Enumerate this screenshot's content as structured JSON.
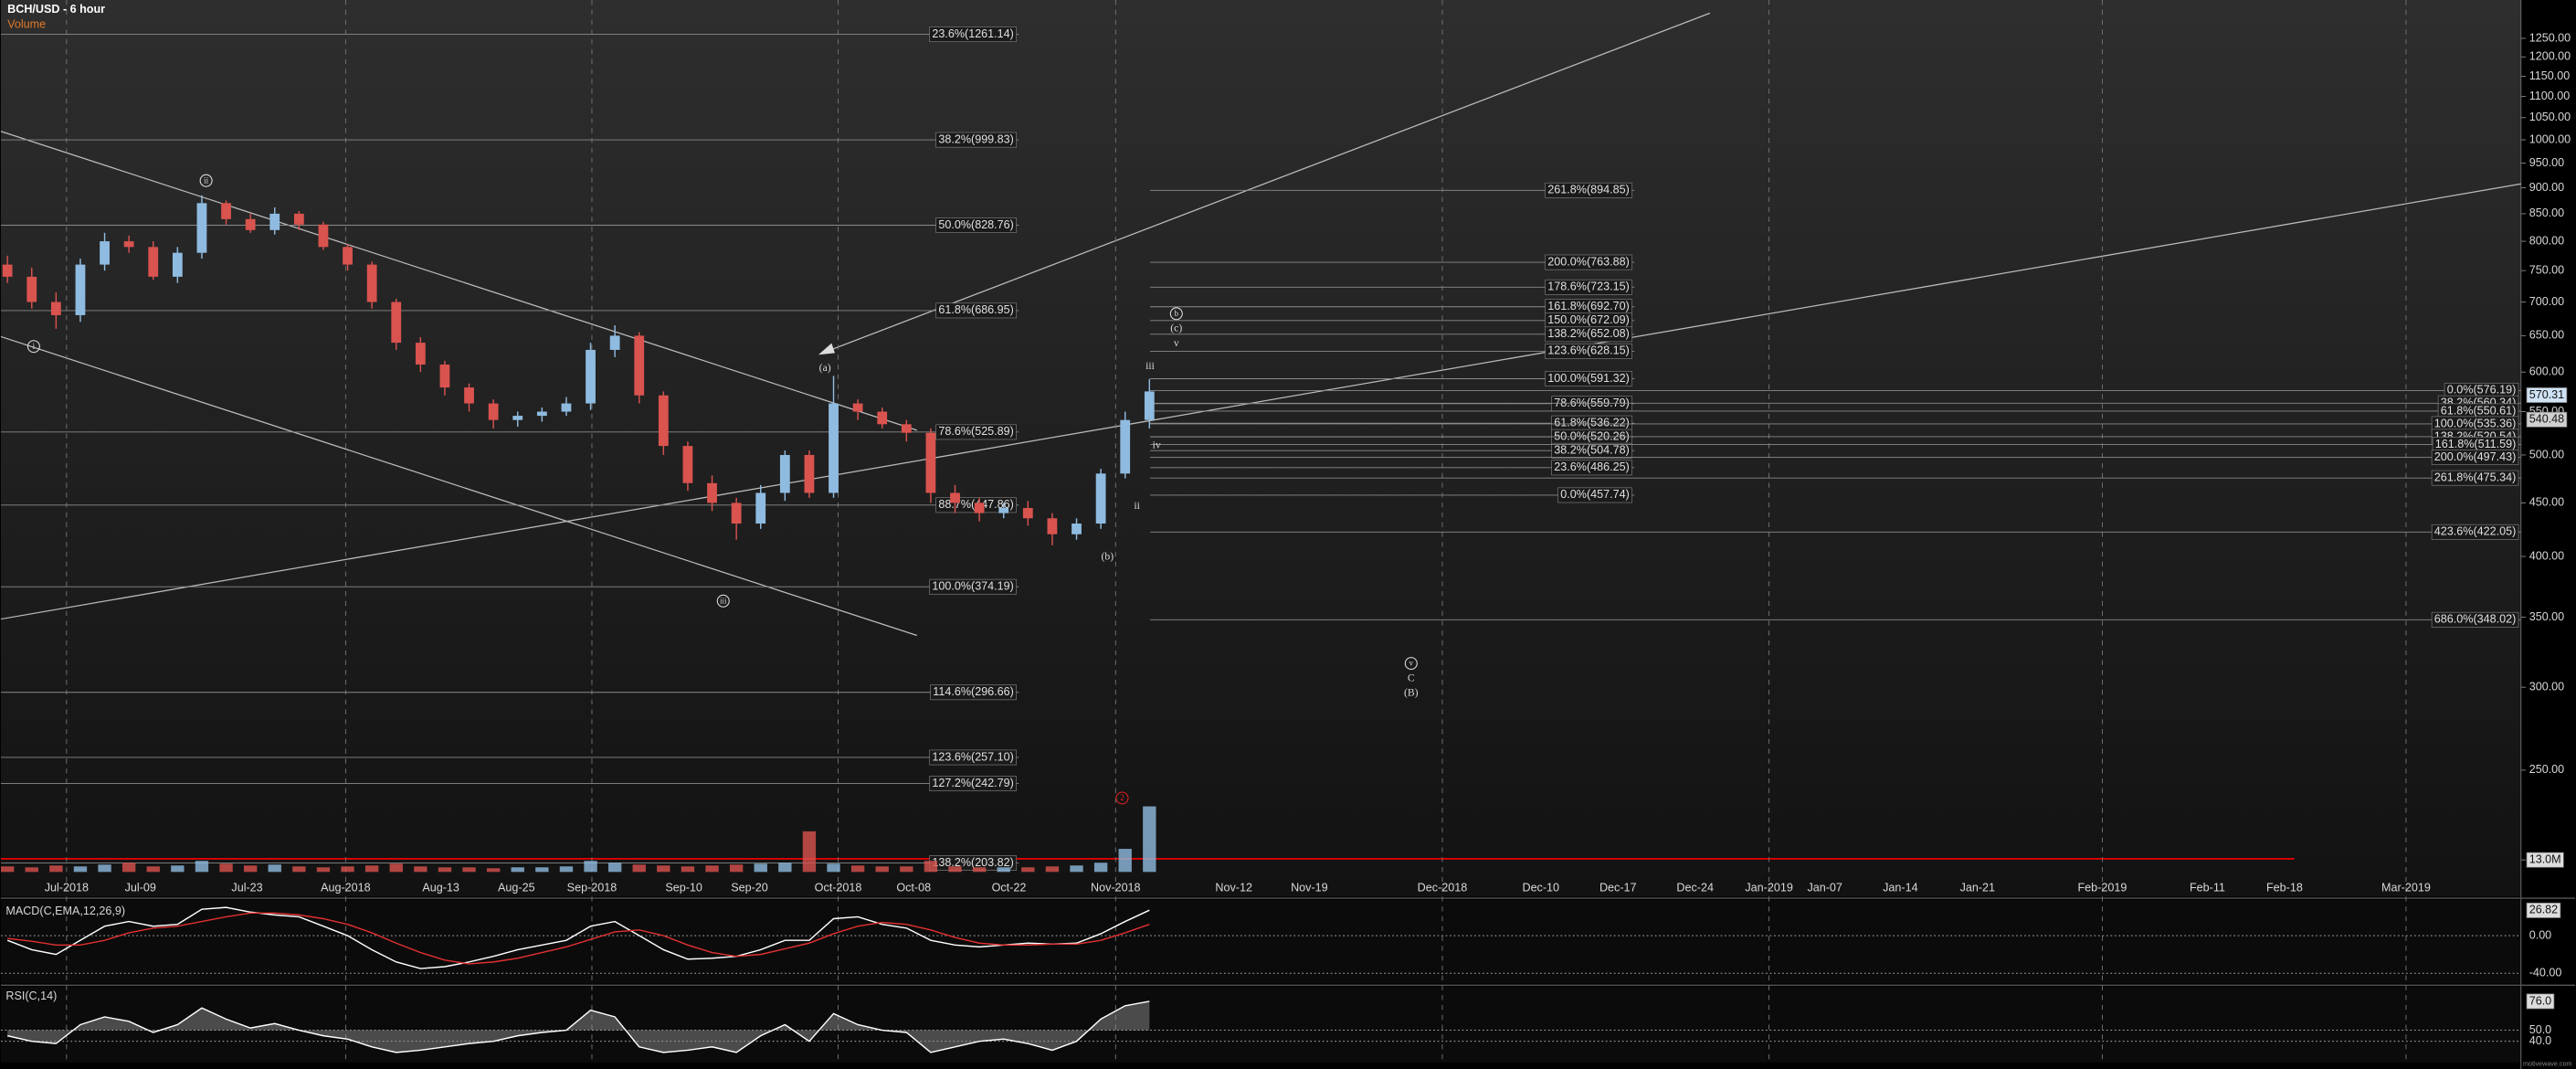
{
  "chart_data": [
    {
      "type": "candlestick",
      "title": "BCH/USD - 6 hour",
      "volume_title": "Volume",
      "open": [
        760,
        740,
        700,
        680,
        760,
        800,
        790,
        740,
        780,
        870,
        840,
        820,
        850,
        830,
        790,
        760,
        700,
        640,
        610,
        580,
        560,
        540,
        545,
        550,
        560,
        630,
        650,
        570,
        510,
        470,
        450,
        430,
        460,
        500,
        460,
        560,
        550,
        535,
        525,
        460,
        450,
        440,
        445,
        435,
        420,
        430,
        480,
        540
      ],
      "high": [
        775,
        755,
        715,
        770,
        815,
        810,
        800,
        790,
        885,
        875,
        850,
        862,
        855,
        835,
        795,
        765,
        705,
        648,
        615,
        585,
        565,
        550,
        555,
        568,
        640,
        665,
        655,
        575,
        515,
        478,
        455,
        468,
        505,
        505,
        595,
        565,
        555,
        540,
        530,
        468,
        455,
        450,
        452,
        440,
        435,
        485,
        550,
        591
      ],
      "low": [
        730,
        690,
        660,
        670,
        750,
        780,
        735,
        730,
        770,
        830,
        815,
        812,
        820,
        785,
        750,
        690,
        630,
        600,
        570,
        550,
        530,
        532,
        538,
        545,
        552,
        620,
        560,
        500,
        462,
        442,
        415,
        425,
        452,
        455,
        455,
        540,
        530,
        515,
        450,
        440,
        432,
        435,
        428,
        410,
        415,
        425,
        475,
        530
      ],
      "close": [
        740,
        700,
        680,
        760,
        800,
        790,
        740,
        780,
        870,
        840,
        820,
        850,
        830,
        790,
        760,
        700,
        640,
        610,
        580,
        560,
        540,
        545,
        550,
        560,
        630,
        650,
        570,
        510,
        470,
        450,
        430,
        460,
        500,
        460,
        560,
        550,
        535,
        525,
        460,
        450,
        440,
        445,
        435,
        420,
        430,
        480,
        540,
        575
      ],
      "volume": [
        6,
        5,
        7,
        6,
        8,
        10,
        6,
        7,
        12,
        9,
        7,
        8,
        6,
        5,
        6,
        7,
        9,
        6,
        5,
        5,
        4,
        5,
        5,
        6,
        12,
        10,
        8,
        7,
        6,
        7,
        8,
        9,
        10,
        44,
        9,
        7,
        6,
        6,
        12,
        6,
        5,
        5,
        5,
        6,
        7,
        10,
        25,
        71
      ],
      "volume_lim": [
        0,
        80
      ],
      "volume_tick": {
        "value": 13,
        "label": "13.0M"
      },
      "up_color": "#8fbbe0",
      "down_color": "#d9534f",
      "log_scale": true,
      "ylim": [
        190,
        1360
      ],
      "yticks": [
        {
          "value": 250,
          "label": "250.00"
        },
        {
          "value": 300,
          "label": "300.00"
        },
        {
          "value": 350,
          "label": "350.00"
        },
        {
          "value": 400,
          "label": "400.00"
        },
        {
          "value": 450,
          "label": "450.00"
        },
        {
          "value": 500,
          "label": "500.00"
        },
        {
          "value": 550,
          "label": "550.00"
        },
        {
          "value": 600,
          "label": "600.00"
        },
        {
          "value": 650,
          "label": "650.00"
        },
        {
          "value": 700,
          "label": "700.00"
        },
        {
          "value": 750,
          "label": "750.00"
        },
        {
          "value": 800,
          "label": "800.00"
        },
        {
          "value": 850,
          "label": "850.00"
        },
        {
          "value": 900,
          "label": "900.00"
        },
        {
          "value": 950,
          "label": "950.00"
        },
        {
          "value": 1000,
          "label": "1000.00"
        },
        {
          "value": 1050,
          "label": "1050.00"
        },
        {
          "value": 1100,
          "label": "1100.00"
        },
        {
          "value": 1150,
          "label": "1150.00"
        },
        {
          "value": 1200,
          "label": "1200.00"
        },
        {
          "value": 1250,
          "label": "1250.00"
        }
      ],
      "last_prices": [
        570.31,
        540.48
      ],
      "date_labels": [
        "Jul-2018",
        "Jul-09",
        "Jul-23",
        "Aug-2018",
        "Aug-13",
        "Aug-25",
        "Sep-2018",
        "Sep-10",
        "Sep-20",
        "Oct-2018",
        "Oct-08",
        "Oct-22",
        "Nov-2018",
        "Nov-12",
        "Nov-19",
        "Dec-2018",
        "Dec-10",
        "Dec-17",
        "Dec-24",
        "Jan-2019",
        "Jan-07",
        "Jan-14",
        "Jan-21",
        "Feb-2019",
        "Feb-11",
        "Feb-18",
        "Mar-2019"
      ],
      "fib_left": [
        {
          "label": "23.6%(1261.14)",
          "value": 1261.14
        },
        {
          "label": "38.2%(999.83)",
          "value": 999.83
        },
        {
          "label": "50.0%(828.76)",
          "value": 828.76
        },
        {
          "label": "61.8%(686.95)",
          "value": 686.95
        },
        {
          "label": "78.6%(525.89)",
          "value": 525.89
        },
        {
          "label": "88.7%(447.86)",
          "value": 447.86
        },
        {
          "label": "100.0%(374.19)",
          "value": 374.19
        },
        {
          "label": "114.6%(296.66)",
          "value": 296.66
        },
        {
          "label": "123.6%(257.10)",
          "value": 257.1
        },
        {
          "label": "127.2%(242.79)",
          "value": 242.79
        },
        {
          "label": "138.2%(203.82)",
          "value": 203.82
        }
      ],
      "fib_mid": [
        {
          "label": "261.8%(894.85)",
          "value": 894.85
        },
        {
          "label": "200.0%(763.88)",
          "value": 763.88
        },
        {
          "label": "178.6%(723.15)",
          "value": 723.15
        },
        {
          "label": "161.8%(692.70)",
          "value": 692.7
        },
        {
          "label": "150.0%(672.09)",
          "value": 672.09
        },
        {
          "label": "138.2%(652.08)",
          "value": 652.08
        },
        {
          "label": "123.6%(628.15)",
          "value": 628.15
        },
        {
          "label": "100.0%(591.32)",
          "value": 591.32
        },
        {
          "label": "78.6%(559.79)",
          "value": 559.79
        },
        {
          "label": "61.8%(536.22)",
          "value": 536.22
        },
        {
          "label": "50.0%(520.26)",
          "value": 520.26
        },
        {
          "label": "38.2%(504.78)",
          "value": 504.78
        },
        {
          "label": "23.6%(486.25)",
          "value": 486.25
        },
        {
          "label": "0.0%(457.74)",
          "value": 457.74
        }
      ],
      "fib_right": [
        {
          "label": "0.0%(576.19)",
          "value": 576.19
        },
        {
          "label": "38.2%(560.34)",
          "value": 560.34
        },
        {
          "label": "61.8%(550.61)",
          "value": 550.61
        },
        {
          "label": "100.0%(535.36)",
          "value": 535.36
        },
        {
          "label": "138.2%(520.54)",
          "value": 520.54
        },
        {
          "label": "161.8%(511.59)",
          "value": 511.59
        },
        {
          "label": "200.0%(497.43)",
          "value": 497.43
        },
        {
          "label": "261.8%(475.34)",
          "value": 475.34
        },
        {
          "label": "423.6%(422.05)",
          "value": 422.05
        },
        {
          "label": "686.0%(348.02)",
          "value": 348.02
        }
      ],
      "annotations": [
        "i",
        "ii",
        "iii",
        "(a)",
        "(b)",
        "b",
        "(c)",
        "v",
        "iii",
        "iv",
        "ii",
        "v",
        "C",
        "(B)",
        "2"
      ],
      "watermark": "motivewave.com"
    },
    {
      "type": "line",
      "title": "MACD(C,EMA,12,26,9)",
      "series": [
        {
          "color": "#ffffff",
          "values": [
            -5,
            -15,
            -20,
            -5,
            10,
            15,
            10,
            12,
            28,
            30,
            25,
            22,
            20,
            10,
            0,
            -15,
            -28,
            -35,
            -33,
            -28,
            -22,
            -15,
            -10,
            -5,
            10,
            15,
            0,
            -15,
            -25,
            -24,
            -22,
            -15,
            -5,
            -5,
            18,
            20,
            12,
            8,
            -5,
            -10,
            -12,
            -10,
            -8,
            -9,
            -8,
            2,
            15,
            27
          ]
        },
        {
          "color": "#e03030",
          "values": [
            -3,
            -6,
            -10,
            -10,
            -5,
            3,
            8,
            10,
            15,
            20,
            24,
            24,
            22,
            18,
            12,
            3,
            -8,
            -18,
            -26,
            -30,
            -28,
            -24,
            -18,
            -12,
            -4,
            4,
            6,
            0,
            -10,
            -18,
            -22,
            -20,
            -14,
            -8,
            2,
            10,
            14,
            12,
            6,
            -2,
            -8,
            -10,
            -10,
            -9,
            -9,
            -5,
            3,
            12
          ]
        }
      ],
      "ylim": [
        -51,
        38
      ],
      "yticks": [
        {
          "value": 0,
          "label": "0.00"
        },
        {
          "value": -40,
          "label": "-40.00"
        }
      ],
      "last_value": 26.82
    },
    {
      "type": "line",
      "title": "RSI(C,14)",
      "series": [
        {
          "color": "#ffffff",
          "values": [
            45,
            40,
            38,
            55,
            62,
            58,
            48,
            55,
            70,
            60,
            52,
            56,
            50,
            45,
            42,
            35,
            30,
            32,
            35,
            38,
            40,
            45,
            48,
            50,
            68,
            62,
            35,
            30,
            32,
            35,
            30,
            45,
            55,
            40,
            65,
            55,
            50,
            48,
            30,
            35,
            40,
            42,
            38,
            32,
            40,
            60,
            72,
            76
          ]
        }
      ],
      "ylim": [
        21,
        89
      ],
      "yticks": [
        {
          "value": 50,
          "label": "50.0"
        },
        {
          "value": 40,
          "label": "40.0"
        }
      ],
      "last_value": {
        "value": 76,
        "label": "76.0"
      }
    }
  ]
}
